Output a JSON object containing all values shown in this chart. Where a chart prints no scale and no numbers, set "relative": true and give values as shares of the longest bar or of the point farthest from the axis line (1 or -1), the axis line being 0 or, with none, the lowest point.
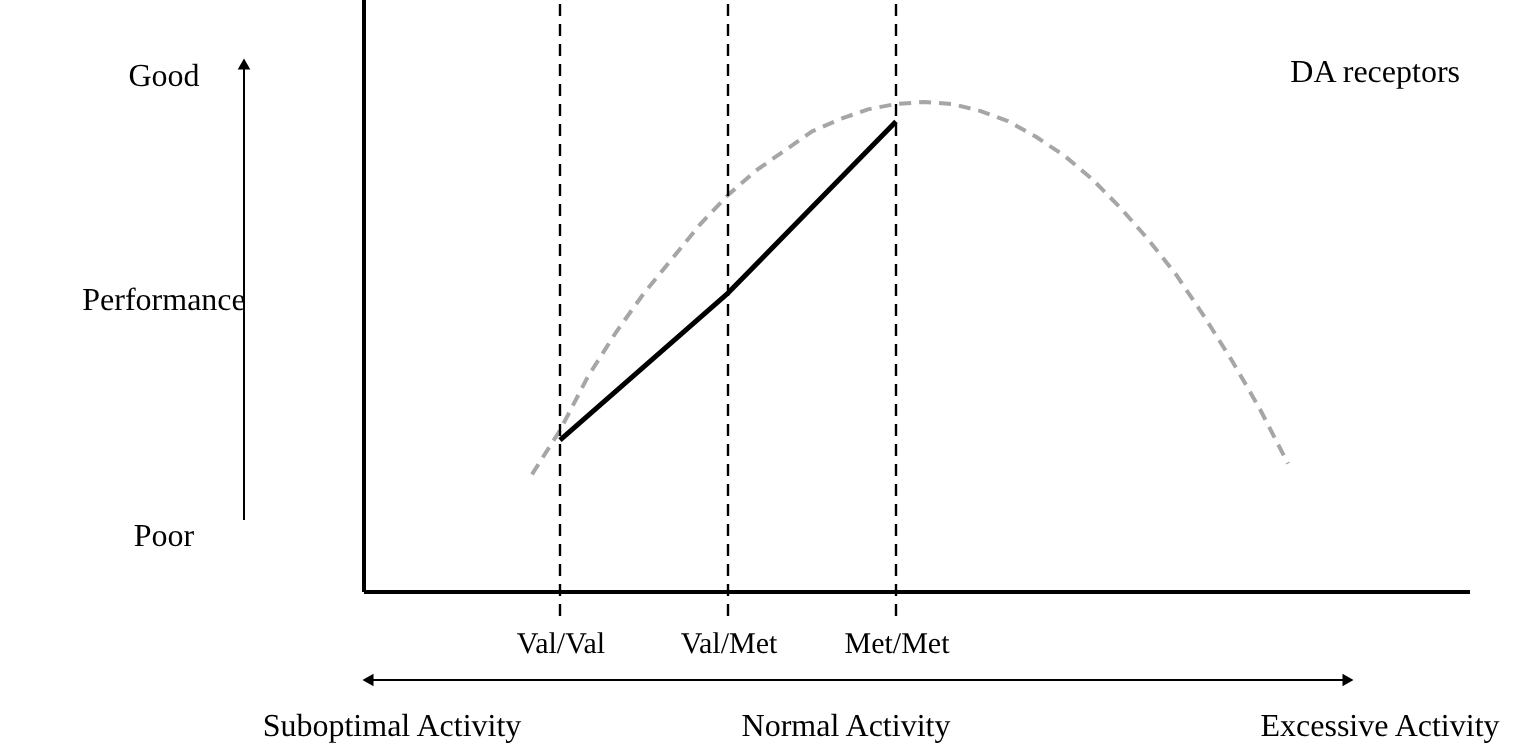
{
  "chart_data": {
    "type": "line",
    "relative": true,
    "categories": [
      null,
      "Val/Val",
      null,
      null,
      null,
      null,
      null,
      "Val/Met",
      null,
      null,
      null,
      null,
      null,
      "Met/Met",
      null,
      null,
      null,
      null,
      null,
      null,
      null,
      null,
      null,
      null,
      null,
      null,
      null,
      null
    ],
    "tick_labels": "x",
    "grid": false,
    "marker": "none",
    "ref_lines": [
      {
        "axis": "x",
        "value": "Val/Val",
        "label": null,
        "line_style": "dashed",
        "color": "#000000"
      },
      {
        "axis": "x",
        "value": "Val/Met",
        "label": null,
        "line_style": "dashed",
        "color": "#000000"
      },
      {
        "axis": "x",
        "value": "Met/Met",
        "label": null,
        "line_style": "dashed",
        "color": "#000000"
      }
    ],
    "series": [
      {
        "color": "#a6a6a6",
        "line_style": "dashed",
        "values": [
          0.24,
          0.33,
          0.44,
          0.53,
          0.61,
          0.68,
          0.75,
          0.81,
          0.86,
          0.9,
          0.94,
          0.965,
          0.985,
          0.996,
          1,
          0.996,
          0.982,
          0.961,
          0.929,
          0.891,
          0.843,
          0.785,
          0.72,
          0.648,
          0.563,
          0.472,
          0.373,
          0.262
        ]
      },
      {
        "color": "#000000",
        "line_style": "solid",
        "x": [
          "Val/Val",
          "Val/Met",
          "Met/Met"
        ],
        "values": [
          0.31,
          0.61,
          0.96
        ]
      }
    ],
    "annotations": [
      "Good",
      "Performance",
      "Poor",
      "DA receptors",
      "Suboptimal Activity",
      "Normal Activity",
      "Excessive Activity"
    ]
  }
}
